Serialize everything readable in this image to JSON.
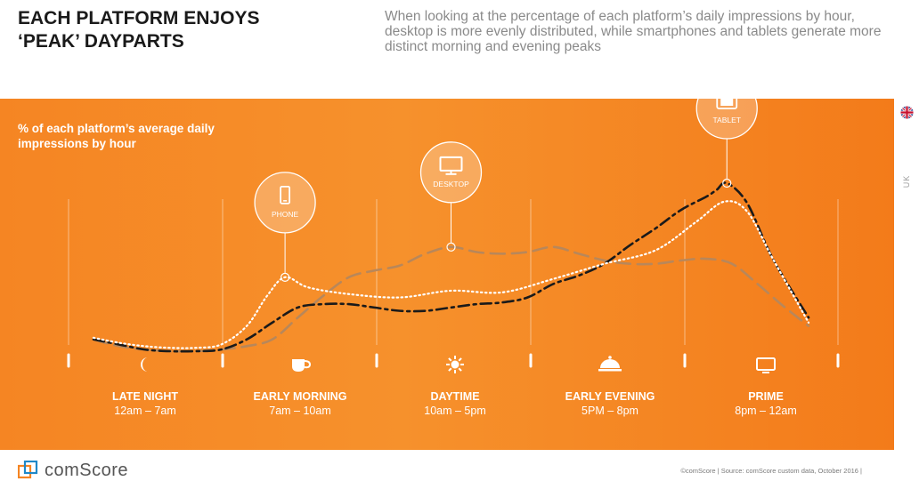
{
  "header": {
    "title": "EACH PLATFORM ENJOYS ‘PEAK’ DAYPARTS",
    "subtitle": "When looking at the percentage of each platform’s daily impressions by hour, desktop is more evenly distributed, while smartphones and tablets generate more distinct morning and evening peaks"
  },
  "chart_data": {
    "type": "line",
    "ylabel": "% of each platform’s average daily impressions by hour",
    "grid": false,
    "legend": "callouts",
    "dayparts": [
      {
        "name": "LATE NIGHT",
        "time": "12am – 7am",
        "icon": "moon-icon"
      },
      {
        "name": "EARLY MORNING",
        "time": "7am – 10am",
        "icon": "coffee-cup-icon"
      },
      {
        "name": "DAYTIME",
        "time": "10am – 5pm",
        "icon": "sun-icon"
      },
      {
        "name": "EARLY EVENING",
        "time": "5PM – 8pm",
        "icon": "cloche-icon"
      },
      {
        "name": "PRIME",
        "time": "8pm – 12am",
        "icon": "tv-icon"
      }
    ],
    "x_domain": [
      0,
      14
    ],
    "y_domain": [
      0,
      100
    ],
    "series": [
      {
        "name": "PHONE",
        "style": "dotted",
        "color": "#ffffff",
        "points": [
          [
            0.0,
            8
          ],
          [
            0.5,
            5
          ],
          [
            1.0,
            3
          ],
          [
            1.5,
            2
          ],
          [
            2.0,
            2
          ],
          [
            2.5,
            4
          ],
          [
            3.0,
            15
          ],
          [
            3.4,
            33
          ],
          [
            3.75,
            44
          ],
          [
            4.2,
            38
          ],
          [
            5.0,
            34
          ],
          [
            6.0,
            32
          ],
          [
            7.0,
            36
          ],
          [
            8.0,
            35
          ],
          [
            9.0,
            43
          ],
          [
            10.0,
            52
          ],
          [
            11.0,
            60
          ],
          [
            11.8,
            77
          ],
          [
            12.35,
            89
          ],
          [
            12.8,
            83
          ],
          [
            13.3,
            55
          ],
          [
            14.0,
            17
          ]
        ]
      },
      {
        "name": "DESKTOP",
        "style": "dashed",
        "color": "#b8875a",
        "points": [
          [
            0.0,
            7
          ],
          [
            0.5,
            3
          ],
          [
            1.0,
            1
          ],
          [
            1.5,
            0
          ],
          [
            2.0,
            0
          ],
          [
            2.5,
            1
          ],
          [
            3.0,
            3
          ],
          [
            3.5,
            7
          ],
          [
            4.0,
            20
          ],
          [
            4.5,
            33
          ],
          [
            5.0,
            44
          ],
          [
            5.5,
            48
          ],
          [
            6.0,
            51
          ],
          [
            6.5,
            58
          ],
          [
            7.0,
            62
          ],
          [
            7.5,
            59
          ],
          [
            8.0,
            58
          ],
          [
            8.5,
            59
          ],
          [
            9.0,
            62
          ],
          [
            9.5,
            58
          ],
          [
            10.0,
            54
          ],
          [
            10.5,
            52
          ],
          [
            11.0,
            52
          ],
          [
            11.5,
            54
          ],
          [
            12.0,
            55
          ],
          [
            12.5,
            52
          ],
          [
            13.0,
            40
          ],
          [
            13.5,
            27
          ],
          [
            14.0,
            15
          ]
        ]
      },
      {
        "name": "TABLET",
        "style": "dash-dot",
        "color": "#1a1a1a",
        "points": [
          [
            0.0,
            7
          ],
          [
            0.5,
            4
          ],
          [
            1.0,
            1
          ],
          [
            1.5,
            0
          ],
          [
            2.0,
            0
          ],
          [
            2.5,
            1
          ],
          [
            3.0,
            7
          ],
          [
            3.5,
            17
          ],
          [
            4.0,
            26
          ],
          [
            4.5,
            28
          ],
          [
            5.0,
            28
          ],
          [
            5.5,
            26
          ],
          [
            6.0,
            24
          ],
          [
            6.5,
            24
          ],
          [
            7.0,
            26
          ],
          [
            7.5,
            28
          ],
          [
            8.0,
            29
          ],
          [
            8.5,
            32
          ],
          [
            9.0,
            40
          ],
          [
            9.5,
            45
          ],
          [
            10.0,
            52
          ],
          [
            10.5,
            63
          ],
          [
            11.0,
            73
          ],
          [
            11.5,
            84
          ],
          [
            12.0,
            92
          ],
          [
            12.2,
            96
          ],
          [
            12.4,
            100
          ],
          [
            12.8,
            88
          ],
          [
            13.3,
            55
          ],
          [
            14.0,
            20
          ]
        ]
      }
    ],
    "callouts": [
      {
        "label": "PHONE",
        "series": "PHONE",
        "x": 3.75,
        "y": 44,
        "icon": "smartphone-icon"
      },
      {
        "label": "DESKTOP",
        "series": "DESKTOP",
        "x": 7.0,
        "y": 62,
        "icon": "monitor-icon"
      },
      {
        "label": "TABLET",
        "series": "TABLET",
        "x": 12.4,
        "y": 100,
        "icon": "tablet-icon"
      }
    ]
  },
  "region": {
    "label": "UK",
    "icon": "uk-flag-icon"
  },
  "footer": {
    "brand": "comScore",
    "brand_icon": "comscore-logo-icon",
    "source": "©comScore  |  Source: comScore custom data, October 2016 |"
  },
  "colors": {
    "panel": "#f58523",
    "text_on_panel": "#ffffff",
    "desktop_line": "#b8875a",
    "tablet_line": "#1a1a1a",
    "phone_line": "#ffffff"
  }
}
